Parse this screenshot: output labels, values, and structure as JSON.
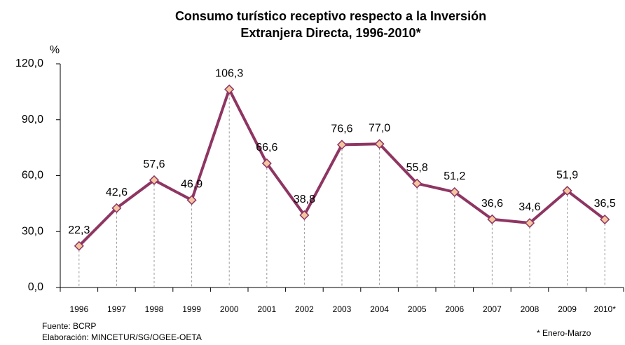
{
  "chart_data": {
    "type": "line",
    "title": [
      "Consumo turístico receptivo respecto a la Inversión",
      "Extranjera Directa, 1996-2010*"
    ],
    "y_label": "%",
    "categories": [
      "1996",
      "1997",
      "1998",
      "1999",
      "2000",
      "2001",
      "2002",
      "2003",
      "2004",
      "2005",
      "2006",
      "2007",
      "2008",
      "2009",
      "2010*"
    ],
    "series": [
      {
        "name": "Consumo turístico receptivo",
        "color": "#8e3562",
        "values": [
          22.3,
          42.6,
          57.6,
          46.9,
          106.3,
          66.6,
          38.8,
          76.6,
          77.0,
          55.8,
          51.2,
          36.6,
          34.6,
          51.9,
          36.5
        ],
        "value_labels": [
          "22,3",
          "42,6",
          "57,6",
          "46,9",
          "106,3",
          "66,6",
          "38,8",
          "76,6",
          "77,0",
          "55,8",
          "51,2",
          "36,6",
          "34,6",
          "51,9",
          "36,5"
        ]
      }
    ],
    "marker_fill": "#f4c6a0",
    "ylim": [
      0,
      120
    ],
    "yticks": [
      {
        "value": 0,
        "label": "0,0"
      },
      {
        "value": 30,
        "label": "30,0"
      },
      {
        "value": 60,
        "label": "60,0"
      },
      {
        "value": 90,
        "label": "90,0"
      },
      {
        "value": 120,
        "label": "120,0"
      }
    ],
    "notes": [
      "Fuente: BCRP",
      "Elaboración:   MINCETUR/SG/OGEE-OETA"
    ],
    "footnote": "* Enero-Marzo"
  }
}
